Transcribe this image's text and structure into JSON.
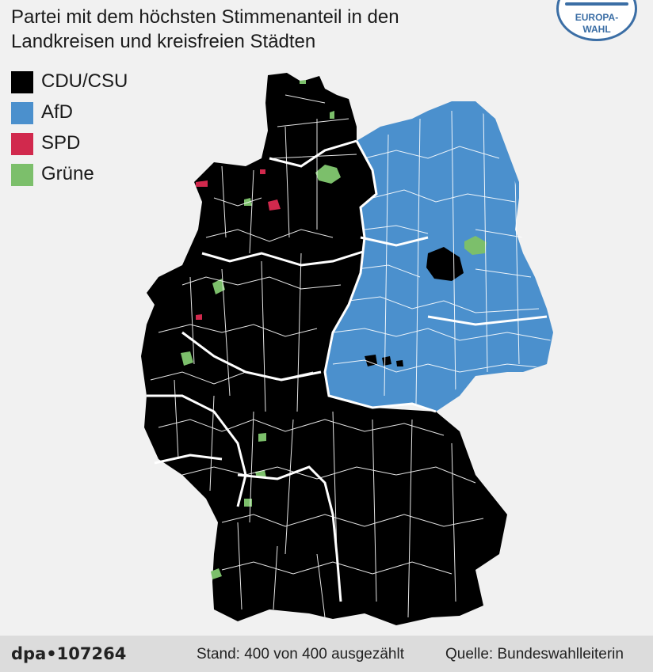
{
  "title": "Partei mit dem höchsten Stimmenanteil in den Landkreisen und kreisfreien Städten",
  "badge": {
    "line1": "EUROPA-",
    "line2": "WAHL"
  },
  "legend": [
    {
      "label": "CDU/CSU",
      "color": "#000000"
    },
    {
      "label": "AfD",
      "color": "#4b90cd"
    },
    {
      "label": "SPD",
      "color": "#d1294d"
    },
    {
      "label": "Grüne",
      "color": "#7cbf6b"
    }
  ],
  "footer": {
    "agency": "dpa•107264",
    "status": "Stand: 400 von 400 ausgezählt",
    "source": "Quelle: Bundeswahlleiterin"
  },
  "map": {
    "background": "#f1f1f1",
    "border_color": "#ffffff"
  }
}
